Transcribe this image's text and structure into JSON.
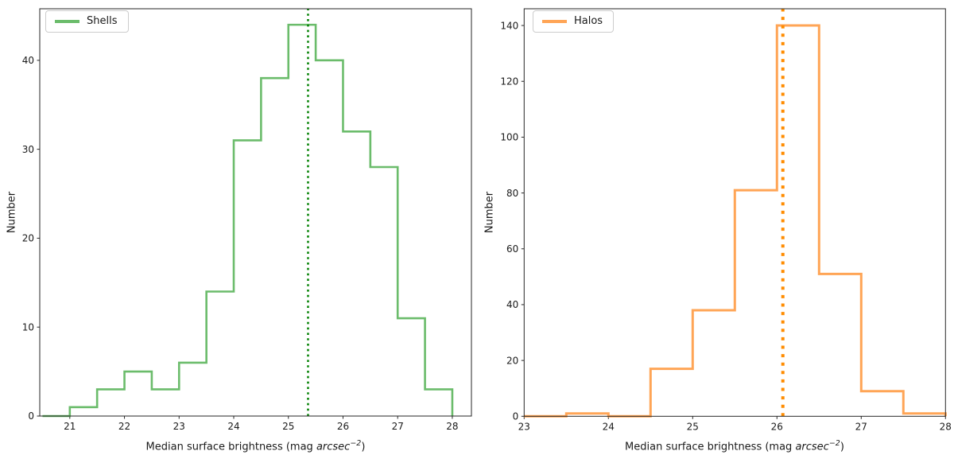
{
  "figure": {
    "background": "#ffffff",
    "text_color": "#1a1a1a"
  },
  "chart_data": [
    {
      "type": "bar",
      "subtype": "step-histogram",
      "legend_label": "Shells",
      "legend_position": "upper left",
      "color": "#6bbc6b",
      "bin_edges": [
        20.5,
        21,
        21.5,
        22,
        22.5,
        23,
        23.5,
        24,
        24.5,
        25,
        25.5,
        26,
        26.5,
        27,
        27.5,
        28
      ],
      "counts": [
        0,
        1,
        3,
        5,
        3,
        6,
        14,
        31,
        38,
        44,
        40,
        32,
        28,
        11,
        3
      ],
      "vline": {
        "x": 25.36,
        "color": "#008000",
        "style": "dotted"
      },
      "xlabel": "Median surface brightness (mag arcsec−2)",
      "xlabel_parts": {
        "prefix": "Median surface brightness (mag ",
        "italic": "arcsec",
        "superscript": "−2",
        "suffix": ")"
      },
      "ylabel": "Number",
      "xlim": [
        20.45,
        28.35
      ],
      "ylim": [
        0,
        45.8
      ],
      "xticks": [
        21,
        22,
        23,
        24,
        25,
        26,
        27,
        28
      ],
      "yticks": [
        0,
        10,
        20,
        30,
        40
      ],
      "grid": false
    },
    {
      "type": "bar",
      "subtype": "step-histogram",
      "legend_label": "Halos",
      "legend_position": "upper left",
      "color": "#ffa556",
      "bin_edges": [
        23,
        23.5,
        24,
        24.5,
        25,
        25.5,
        26,
        26.5,
        27,
        27.5,
        28
      ],
      "counts": [
        0,
        1,
        0,
        17,
        38,
        81,
        140,
        51,
        9,
        1
      ],
      "vline": {
        "x": 26.07,
        "color": "#ff8c00",
        "style": "dotted"
      },
      "xlabel": "Median surface brightness (mag arcsec−2)",
      "xlabel_parts": {
        "prefix": "Median surface brightness (mag ",
        "italic": "arcsec",
        "superscript": "−2",
        "suffix": ")"
      },
      "ylabel": "Number",
      "xlim": [
        23,
        28
      ],
      "ylim": [
        0,
        146
      ],
      "xticks": [
        23,
        24,
        25,
        26,
        27,
        28
      ],
      "yticks": [
        0,
        20,
        40,
        60,
        80,
        100,
        120,
        140
      ],
      "grid": false
    }
  ]
}
